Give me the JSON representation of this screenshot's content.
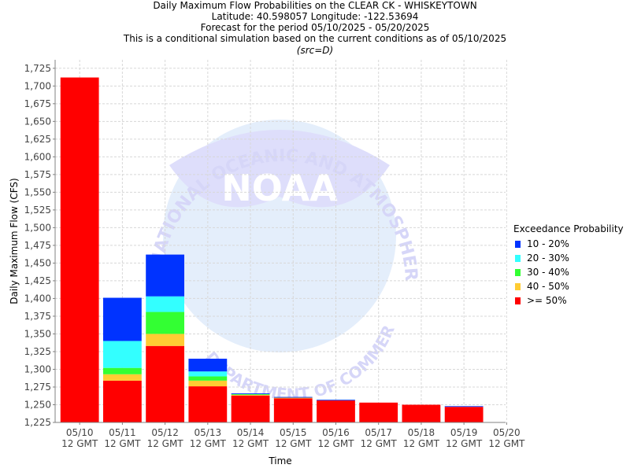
{
  "chart_data": {
    "type": "bar",
    "title_lines": [
      "Daily Maximum Flow Probabilities on the CLEAR CK - WHISKEYTOWN",
      "Latitude: 40.598057 Longitude: -122.53694",
      "Forecast for the period 05/10/2025 - 05/20/2025",
      "This is a conditional simulation based on the current conditions as of 05/10/2025"
    ],
    "subtitle": "(src=D)",
    "xlabel": "Time",
    "ylabel": "Daily Maximum Flow (CFS)",
    "ylim": [
      1225,
      1737
    ],
    "yticks": [
      1225,
      1250,
      1275,
      1300,
      1325,
      1350,
      1375,
      1400,
      1425,
      1450,
      1475,
      1500,
      1525,
      1550,
      1575,
      1600,
      1625,
      1650,
      1675,
      1700,
      1725
    ],
    "ytick_labels": [
      "1,225",
      "1,250",
      "1,275",
      "1,300",
      "1,325",
      "1,350",
      "1,375",
      "1,400",
      "1,425",
      "1,450",
      "1,475",
      "1,500",
      "1,525",
      "1,550",
      "1,575",
      "1,600",
      "1,625",
      "1,650",
      "1,675",
      "1,700",
      "1,725"
    ],
    "xtick_dates": [
      "05/10",
      "05/11",
      "05/12",
      "05/13",
      "05/14",
      "05/15",
      "05/16",
      "05/17",
      "05/18",
      "05/19",
      "05/20"
    ],
    "xtick_sub": "12 GMT",
    "grid": true,
    "legend": {
      "title": "Exceedance Probability",
      "placement": "right",
      "entries": [
        {
          "label": "10 - 20%",
          "color": "#0033ff"
        },
        {
          "label": "20 - 30%",
          "color": "#33ffff"
        },
        {
          "label": "30 - 40%",
          "color": "#33ff33"
        },
        {
          "label": "40 - 50%",
          "color": "#ffcc33"
        },
        {
          "label": ">= 50%",
          "color": "#ff0000"
        }
      ]
    },
    "bars": [
      {
        "date": "05/10",
        "values": {
          ">= 50%": 1712,
          "40 - 50%": 1712,
          "30 - 40%": 1712,
          "20 - 30%": 1712,
          "10 - 20%": 1712
        }
      },
      {
        "date": "05/11",
        "values": {
          ">= 50%": 1284,
          "40 - 50%": 1293,
          "30 - 40%": 1302,
          "20 - 30%": 1340,
          "10 - 20%": 1401
        }
      },
      {
        "date": "05/12",
        "values": {
          ">= 50%": 1333,
          "40 - 50%": 1350,
          "30 - 40%": 1381,
          "20 - 30%": 1403,
          "10 - 20%": 1462
        }
      },
      {
        "date": "05/13",
        "values": {
          ">= 50%": 1276,
          "40 - 50%": 1284,
          "30 - 40%": 1290,
          "20 - 30%": 1297,
          "10 - 20%": 1315
        }
      },
      {
        "date": "05/14",
        "values": {
          ">= 50%": 1263,
          "40 - 50%": 1264,
          "30 - 40%": 1265,
          "20 - 30%": 1265,
          "10 - 20%": 1266
        }
      },
      {
        "date": "05/15",
        "values": {
          ">= 50%": 1259,
          "40 - 50%": 1260,
          "30 - 40%": 1260,
          "20 - 30%": 1260,
          "10 - 20%": 1261
        }
      },
      {
        "date": "05/16",
        "values": {
          ">= 50%": 1256,
          "40 - 50%": 1256,
          "30 - 40%": 1256,
          "20 - 30%": 1256,
          "10 - 20%": 1257
        }
      },
      {
        "date": "05/17",
        "values": {
          ">= 50%": 1253,
          "40 - 50%": 1253,
          "30 - 40%": 1253,
          "20 - 30%": 1253,
          "10 - 20%": 1253
        }
      },
      {
        "date": "05/18",
        "values": {
          ">= 50%": 1250,
          "40 - 50%": 1250,
          "30 - 40%": 1250,
          "20 - 30%": 1250,
          "10 - 20%": 1250
        }
      },
      {
        "date": "05/19",
        "values": {
          ">= 50%": 1247,
          "40 - 50%": 1247,
          "30 - 40%": 1247,
          "20 - 30%": 1247,
          "10 - 20%": 1248
        }
      }
    ],
    "watermark": {
      "logo_text": "NOAA",
      "ring_text": "NATIONAL OCEANIC AND ATMOSPHERIC ADMINISTRATION",
      "bottom_text": "DEPARTMENT OF COMMERCE"
    }
  }
}
